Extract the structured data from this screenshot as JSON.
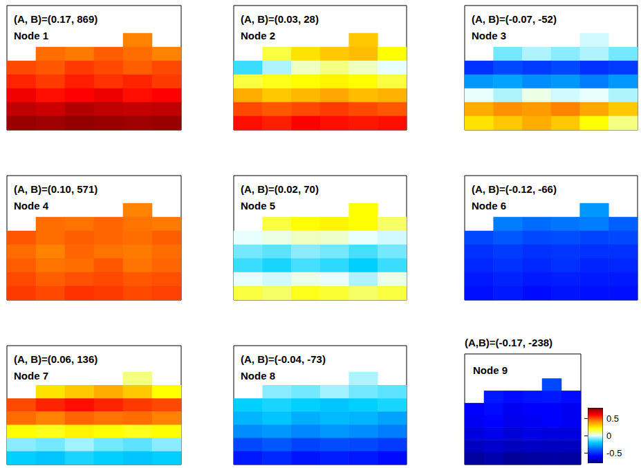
{
  "chart_data": {
    "type": "heatmap",
    "tick_labels": false,
    "colorbar": {
      "range": [
        -0.8,
        0.8
      ],
      "ticks": [
        -0.5,
        0,
        0.5
      ]
    },
    "panels": [
      {
        "title": "(A, B)=(0.17, 869)",
        "subtitle": "Node 1",
        "cells": [
          [
            null,
            null,
            null,
            null,
            null,
            null
          ],
          [
            null,
            null,
            null,
            null,
            null,
            null
          ],
          [
            null,
            null,
            null,
            null,
            0.42,
            null
          ],
          [
            null,
            0.45,
            0.43,
            0.47,
            0.45,
            0.42
          ],
          [
            0.5,
            0.48,
            0.52,
            0.5,
            0.47,
            0.5
          ],
          [
            0.55,
            0.52,
            0.56,
            0.53,
            0.55,
            0.52
          ],
          [
            0.62,
            0.58,
            0.6,
            0.63,
            0.58,
            0.6
          ],
          [
            0.7,
            0.68,
            0.72,
            0.7,
            0.69,
            0.7
          ],
          [
            0.76,
            0.75,
            0.77,
            0.76,
            0.75,
            0.76
          ]
        ]
      },
      {
        "title": "(A, B)=(0.03, 28)",
        "subtitle": "Node 2",
        "cells": [
          [
            null,
            null,
            null,
            null,
            null,
            null
          ],
          [
            null,
            null,
            null,
            null,
            null,
            null
          ],
          [
            null,
            null,
            null,
            null,
            0.3,
            null
          ],
          [
            null,
            0.15,
            0.25,
            0.3,
            0.32,
            0.2
          ],
          [
            -0.15,
            -0.05,
            0.05,
            0.1,
            0.05,
            0.0
          ],
          [
            0.15,
            0.18,
            0.2,
            0.22,
            0.2,
            0.15
          ],
          [
            0.35,
            0.3,
            0.33,
            0.36,
            0.32,
            0.34
          ],
          [
            0.5,
            0.48,
            0.5,
            0.52,
            0.5,
            0.48
          ],
          [
            0.58,
            0.56,
            0.6,
            0.58,
            0.57,
            0.58
          ]
        ]
      },
      {
        "title": "(A, B)=(-0.07, -52)",
        "subtitle": "Node 3",
        "cells": [
          [
            null,
            null,
            null,
            null,
            null,
            null
          ],
          [
            null,
            null,
            null,
            null,
            null,
            null
          ],
          [
            null,
            null,
            null,
            null,
            -0.02,
            null
          ],
          [
            null,
            -0.1,
            -0.05,
            -0.08,
            -0.05,
            -0.1
          ],
          [
            -0.5,
            -0.45,
            -0.48,
            -0.45,
            -0.5,
            -0.48
          ],
          [
            -0.3,
            -0.28,
            -0.32,
            -0.3,
            -0.35,
            -0.3
          ],
          [
            0.0,
            -0.05,
            0.02,
            -0.02,
            0.0,
            -0.05
          ],
          [
            0.35,
            0.4,
            0.38,
            0.42,
            0.36,
            0.3
          ],
          [
            0.25,
            0.3,
            0.35,
            0.3,
            0.2,
            0.1
          ]
        ]
      },
      {
        "title": "(A, B)=(0.10, 571)",
        "subtitle": "Node 4",
        "cells": [
          [
            null,
            null,
            null,
            null,
            null,
            null
          ],
          [
            null,
            null,
            null,
            null,
            null,
            null
          ],
          [
            null,
            null,
            null,
            null,
            0.42,
            null
          ],
          [
            null,
            0.45,
            0.44,
            0.46,
            0.44,
            0.43
          ],
          [
            0.48,
            0.45,
            0.47,
            0.46,
            0.45,
            0.47
          ],
          [
            0.45,
            0.42,
            0.46,
            0.44,
            0.43,
            0.45
          ],
          [
            0.47,
            0.44,
            0.45,
            0.48,
            0.44,
            0.46
          ],
          [
            0.5,
            0.47,
            0.49,
            0.5,
            0.48,
            0.49
          ],
          [
            0.52,
            0.5,
            0.53,
            0.52,
            0.5,
            0.51
          ]
        ]
      },
      {
        "title": "(A, B)=(0.02, 70)",
        "subtitle": "Node 5",
        "cells": [
          [
            null,
            null,
            null,
            null,
            null,
            null
          ],
          [
            null,
            null,
            null,
            null,
            null,
            null
          ],
          [
            null,
            null,
            null,
            null,
            0.2,
            null
          ],
          [
            null,
            0.15,
            0.2,
            0.22,
            0.2,
            0.12
          ],
          [
            0.0,
            0.02,
            0.05,
            0.04,
            0.0,
            -0.02
          ],
          [
            -0.1,
            -0.12,
            -0.08,
            -0.1,
            -0.14,
            -0.1
          ],
          [
            -0.15,
            -0.18,
            -0.14,
            -0.16,
            -0.2,
            -0.15
          ],
          [
            0.0,
            -0.02,
            0.02,
            0.0,
            -0.05,
            0.02
          ],
          [
            0.15,
            0.12,
            0.18,
            0.16,
            0.12,
            0.15
          ]
        ]
      },
      {
        "title": "(A, B)=(-0.12, -66)",
        "subtitle": "Node 6",
        "cells": [
          [
            null,
            null,
            null,
            null,
            null,
            null
          ],
          [
            null,
            null,
            null,
            null,
            null,
            null
          ],
          [
            null,
            null,
            null,
            null,
            -0.3,
            null
          ],
          [
            null,
            -0.35,
            -0.38,
            -0.36,
            -0.35,
            -0.4
          ],
          [
            -0.45,
            -0.42,
            -0.45,
            -0.44,
            -0.46,
            -0.45
          ],
          [
            -0.5,
            -0.48,
            -0.5,
            -0.49,
            -0.5,
            -0.5
          ],
          [
            -0.52,
            -0.5,
            -0.52,
            -0.5,
            -0.53,
            -0.52
          ],
          [
            -0.55,
            -0.53,
            -0.55,
            -0.54,
            -0.55,
            -0.55
          ],
          [
            -0.57,
            -0.55,
            -0.58,
            -0.56,
            -0.57,
            -0.57
          ]
        ]
      },
      {
        "title": "(A, B)=(0.06, 136)",
        "subtitle": "Node 7",
        "cells": [
          [
            null,
            null,
            null,
            null,
            null,
            null
          ],
          [
            null,
            null,
            null,
            null,
            null,
            null
          ],
          [
            null,
            null,
            null,
            null,
            0.1,
            null
          ],
          [
            null,
            0.25,
            0.3,
            0.35,
            0.3,
            0.2
          ],
          [
            0.5,
            0.55,
            0.58,
            0.55,
            0.52,
            0.5
          ],
          [
            0.45,
            0.42,
            0.46,
            0.44,
            0.45,
            0.42
          ],
          [
            0.2,
            0.18,
            0.22,
            0.2,
            0.18,
            0.2
          ],
          [
            -0.08,
            -0.1,
            -0.06,
            -0.1,
            -0.12,
            -0.08
          ],
          [
            -0.2,
            -0.22,
            -0.18,
            -0.2,
            -0.22,
            -0.2
          ]
        ]
      },
      {
        "title": "(A, B)=(-0.04, -73)",
        "subtitle": "Node 8",
        "cells": [
          [
            null,
            null,
            null,
            null,
            null,
            null
          ],
          [
            null,
            null,
            null,
            null,
            null,
            null
          ],
          [
            null,
            null,
            null,
            null,
            -0.05,
            null
          ],
          [
            null,
            -0.08,
            -0.1,
            -0.06,
            -0.1,
            -0.12
          ],
          [
            -0.2,
            -0.18,
            -0.2,
            -0.22,
            -0.2,
            -0.18
          ],
          [
            -0.25,
            -0.22,
            -0.26,
            -0.24,
            -0.25,
            -0.28
          ],
          [
            -0.32,
            -0.3,
            -0.33,
            -0.3,
            -0.32,
            -0.35
          ],
          [
            -0.45,
            -0.42,
            -0.46,
            -0.44,
            -0.45,
            -0.48
          ],
          [
            -0.55,
            -0.52,
            -0.56,
            -0.54,
            -0.55,
            -0.58
          ]
        ]
      },
      {
        "title": "(A,B)=(-0.17, -238)",
        "subtitle": "Node 9",
        "cells": [
          [
            null,
            null,
            null,
            null,
            null,
            null
          ],
          [
            null,
            null,
            null,
            null,
            null,
            null
          ],
          [
            null,
            null,
            null,
            null,
            -0.45,
            null
          ],
          [
            null,
            -0.55,
            -0.58,
            -0.56,
            -0.55,
            -0.58
          ],
          [
            -0.6,
            -0.58,
            -0.62,
            -0.6,
            -0.6,
            -0.62
          ],
          [
            -0.62,
            -0.6,
            -0.63,
            -0.62,
            -0.6,
            -0.62
          ],
          [
            -0.65,
            -0.63,
            -0.66,
            -0.64,
            -0.65,
            -0.65
          ],
          [
            -0.7,
            -0.68,
            -0.7,
            -0.69,
            -0.7,
            -0.7
          ],
          [
            -0.75,
            -0.73,
            -0.76,
            -0.75,
            -0.74,
            -0.75
          ]
        ]
      }
    ]
  }
}
